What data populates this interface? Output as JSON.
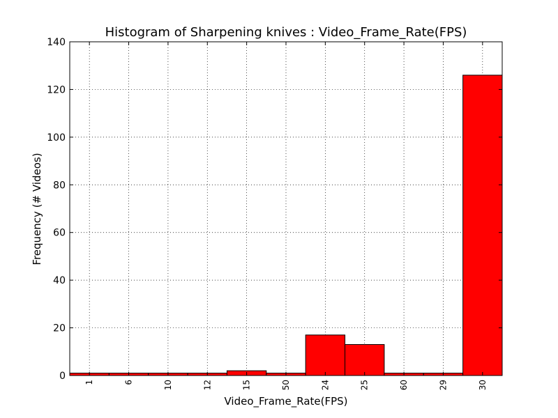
{
  "chart_data": {
    "type": "bar",
    "title": "Histogram of Sharpening knives : Video_Frame_Rate(FPS)",
    "xlabel": "Video_Frame_Rate(FPS)",
    "ylabel": "Frequency (# Videos)",
    "categories": [
      "1",
      "6",
      "10",
      "12",
      "15",
      "50",
      "24",
      "25",
      "60",
      "29",
      "30"
    ],
    "values": [
      1,
      1,
      1,
      1,
      2,
      1,
      17,
      13,
      1,
      1,
      126
    ],
    "ylim": [
      0,
      140
    ],
    "yticks": [
      0,
      20,
      40,
      60,
      80,
      100,
      120,
      140
    ],
    "grid": true,
    "bar_color": "#ff0000"
  }
}
